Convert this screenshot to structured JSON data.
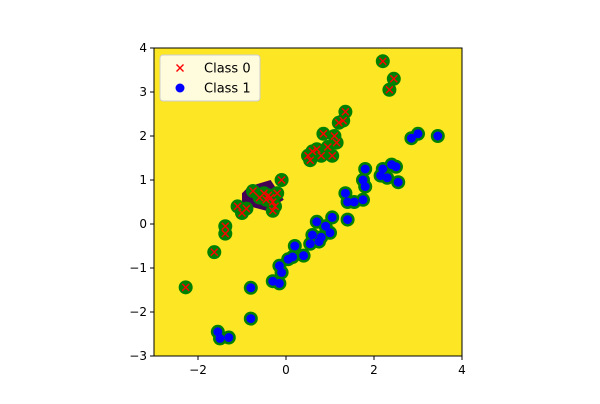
{
  "chart_data": {
    "type": "scatter",
    "title": "",
    "xlabel": "",
    "ylabel": "",
    "xlim": [
      -3,
      4
    ],
    "ylim": [
      -3,
      4
    ],
    "x_ticks": [
      "−2",
      "0",
      "2",
      "4"
    ],
    "y_ticks": [
      "−3",
      "−2",
      "−1",
      "0",
      "1",
      "2",
      "3",
      "4"
    ],
    "grid": false,
    "legend_position": "top-left",
    "background_color": "#fde725",
    "decision_region_color": "#440154",
    "support_vector_ring_color": "#008000",
    "series": [
      {
        "name": "Class 0",
        "marker": "x",
        "color": "#ff0000",
        "points": [
          [
            -2.28,
            -1.44
          ],
          [
            -1.63,
            -0.64
          ],
          [
            -1.38,
            -0.22
          ],
          [
            -1.38,
            -0.05
          ],
          [
            -1.1,
            0.4
          ],
          [
            -1.0,
            0.25
          ],
          [
            -0.9,
            0.35
          ],
          [
            -0.75,
            0.75
          ],
          [
            -0.6,
            0.6
          ],
          [
            -0.5,
            0.7
          ],
          [
            -0.45,
            0.55
          ],
          [
            -0.4,
            0.65
          ],
          [
            -0.35,
            0.6
          ],
          [
            -0.3,
            0.5
          ],
          [
            -0.25,
            0.4
          ],
          [
            -0.2,
            0.7
          ],
          [
            -0.3,
            0.3
          ],
          [
            -0.1,
            1.0
          ],
          [
            0.5,
            1.55
          ],
          [
            0.55,
            1.45
          ],
          [
            0.6,
            1.65
          ],
          [
            0.7,
            1.7
          ],
          [
            0.8,
            1.55
          ],
          [
            0.85,
            2.05
          ],
          [
            0.95,
            1.75
          ],
          [
            1.05,
            1.55
          ],
          [
            1.1,
            2.0
          ],
          [
            1.15,
            1.85
          ],
          [
            1.2,
            2.3
          ],
          [
            1.3,
            2.35
          ],
          [
            1.35,
            2.55
          ],
          [
            2.35,
            3.05
          ],
          [
            2.45,
            3.3
          ],
          [
            2.2,
            3.7
          ]
        ]
      },
      {
        "name": "Class 1",
        "marker": "o",
        "color": "#0000ff",
        "points": [
          [
            -1.55,
            -2.45
          ],
          [
            -1.5,
            -2.6
          ],
          [
            -1.3,
            -2.58
          ],
          [
            -0.8,
            -2.15
          ],
          [
            -0.8,
            -1.45
          ],
          [
            -0.3,
            -1.3
          ],
          [
            -0.15,
            -1.35
          ],
          [
            -0.1,
            -1.1
          ],
          [
            -0.15,
            -0.95
          ],
          [
            0.05,
            -0.8
          ],
          [
            0.15,
            -0.75
          ],
          [
            0.2,
            -0.5
          ],
          [
            0.4,
            -0.72
          ],
          [
            0.55,
            -0.45
          ],
          [
            0.6,
            -0.25
          ],
          [
            0.7,
            0.05
          ],
          [
            0.75,
            -0.4
          ],
          [
            0.8,
            -0.3
          ],
          [
            0.9,
            -0.05
          ],
          [
            1.0,
            -0.2
          ],
          [
            1.05,
            0.15
          ],
          [
            1.35,
            0.7
          ],
          [
            1.4,
            0.5
          ],
          [
            1.4,
            0.1
          ],
          [
            1.55,
            0.5
          ],
          [
            1.75,
            0.55
          ],
          [
            1.75,
            1.0
          ],
          [
            1.8,
            0.85
          ],
          [
            1.8,
            1.25
          ],
          [
            2.15,
            1.1
          ],
          [
            2.2,
            1.25
          ],
          [
            2.3,
            1.05
          ],
          [
            2.4,
            1.35
          ],
          [
            2.5,
            1.3
          ],
          [
            2.55,
            0.95
          ],
          [
            2.85,
            1.95
          ],
          [
            3.0,
            2.05
          ],
          [
            3.45,
            2.0
          ]
        ]
      }
    ],
    "decision_region": [
      [
        -0.85,
        0.85
      ],
      [
        -0.35,
        1.0
      ],
      [
        -0.05,
        0.55
      ],
      [
        -0.45,
        0.3
      ],
      [
        -1.0,
        0.45
      ],
      [
        -1.0,
        0.7
      ]
    ]
  }
}
